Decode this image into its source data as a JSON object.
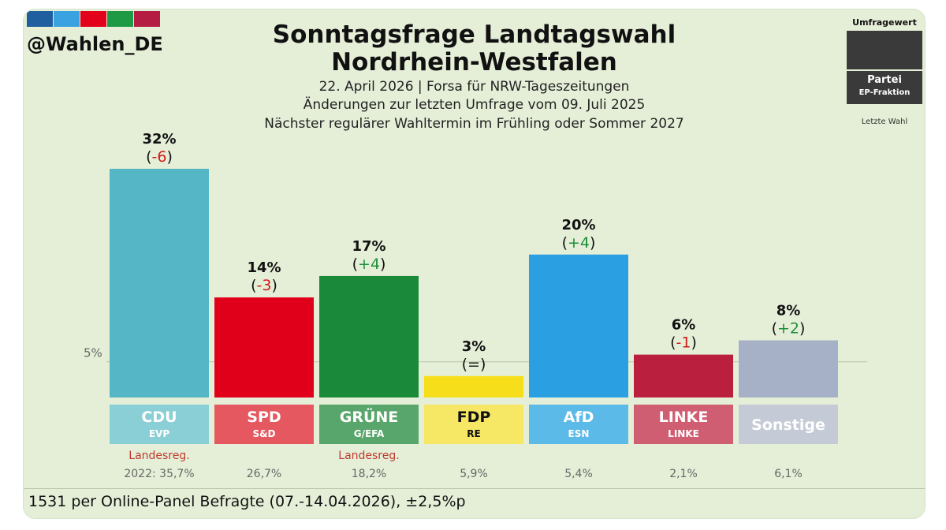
{
  "header": {
    "handle": "@Wahlen_DE",
    "stripe_colors": [
      "#1f5e9f",
      "#3aa2e0",
      "#e2001a",
      "#1e9a44",
      "#b51c44"
    ],
    "title_line1": "Sonntagsfrage Landtagswahl",
    "title_line2": "Nordrhein-Westfalen",
    "subtitle_line1": "22. April 2026 | Forsa für NRW-Tageszeitungen",
    "subtitle_line2": "Änderungen zur letzten Umfrage vom 09. Juli 2025",
    "subtitle_line3": "Nächster regulärer Wahltermin im Frühling oder Sommer 2027"
  },
  "legend": {
    "title": "Umfragewert",
    "party": "Partei",
    "group": "EP-Fraktion",
    "last": "Letzte Wahl"
  },
  "chart_data": {
    "type": "bar",
    "title": "Sonntagsfrage Landtagswahl Nordrhein-Westfalen",
    "categories": [
      "CDU",
      "SPD",
      "GRÜNE",
      "FDP",
      "AfD",
      "LINKE",
      "Sonstige"
    ],
    "values": [
      32,
      14,
      17,
      3,
      20,
      6,
      8
    ],
    "value_labels": [
      "32%",
      "14%",
      "17%",
      "3%",
      "20%",
      "6%",
      "8%"
    ],
    "change_labels": [
      "-6",
      "-3",
      "+4",
      "=",
      "+4",
      "-1",
      "+2"
    ],
    "groups": [
      "EVP",
      "S&D",
      "G/EFA",
      "RE",
      "ESN",
      "LINKE",
      ""
    ],
    "regierung": [
      "Landesreg.",
      "",
      "Landesreg.",
      "",
      "",
      "",
      ""
    ],
    "last_election": [
      "2022: 35,7%",
      "26,7%",
      "18,2%",
      "5,9%",
      "5,4%",
      "2,1%",
      "6,1%"
    ],
    "colors": [
      "#55b6c6",
      "#e1001a",
      "#1a8a3a",
      "#f6df1a",
      "#2aa0e3",
      "#bb1f3e",
      "#a6b0c6"
    ],
    "label_colors": [
      "#8bcfd6",
      "#e5585f",
      "#58a66b",
      "#f6e765",
      "#5cbae8",
      "#cf5e72",
      "#c5cbd6"
    ],
    "change_colors": [
      "#d21a1a",
      "#d21a1a",
      "#1e8e3a",
      "#222222",
      "#1e8e3a",
      "#d21a1a",
      "#1e8e3a"
    ],
    "threshold": 5,
    "threshold_label": "5%",
    "ylim": [
      0,
      32
    ],
    "xlabel": "",
    "ylabel": ""
  },
  "footer": {
    "text": "1531 per Online-Panel Befragte (07.-14.04.2026), ±2,5%p"
  }
}
